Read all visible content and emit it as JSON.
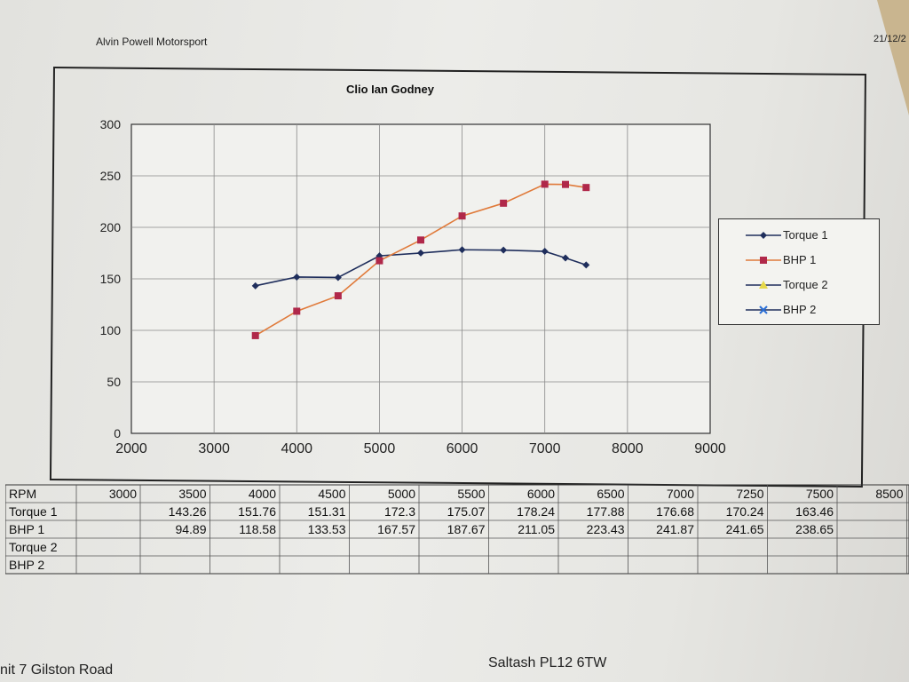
{
  "header": {
    "company": "Alvin Powell Motorsport",
    "date": "21/12/2"
  },
  "chart_data": {
    "type": "line",
    "title": "Clio Ian Godney",
    "xlim": [
      2000,
      9000
    ],
    "ylim": [
      0,
      300
    ],
    "xticks": [
      "2000",
      "3000",
      "4000",
      "5000",
      "6000",
      "7000",
      "8000",
      "9000"
    ],
    "yticks": [
      "0",
      "50",
      "100",
      "150",
      "200",
      "250",
      "300"
    ],
    "grid": true,
    "legend_position": "right",
    "series": [
      {
        "name": "Torque 1",
        "color": "#1f2e5c",
        "marker": "diamond",
        "x": [
          3500,
          4000,
          4500,
          5000,
          5500,
          6000,
          6500,
          7000,
          7250,
          7500
        ],
        "values": [
          143.26,
          151.76,
          151.31,
          172.3,
          175.07,
          178.24,
          177.88,
          176.68,
          170.24,
          163.46
        ]
      },
      {
        "name": "BHP 1",
        "color": "#b0284a",
        "line_color": "#e07a3a",
        "marker": "square",
        "x": [
          3500,
          4000,
          4500,
          5000,
          5500,
          6000,
          6500,
          7000,
          7250,
          7500
        ],
        "values": [
          94.89,
          118.58,
          133.53,
          167.57,
          187.67,
          211.05,
          223.43,
          241.87,
          241.65,
          238.65
        ]
      },
      {
        "name": "Torque 2",
        "color": "#1f2e5c",
        "marker": "triangle",
        "x": [],
        "values": []
      },
      {
        "name": "BHP 2",
        "color": "#1f2e5c",
        "marker": "x",
        "x": [],
        "values": []
      }
    ]
  },
  "table": {
    "row_labels": [
      "RPM",
      "Torque 1",
      "BHP 1",
      "Torque 2",
      "BHP 2"
    ],
    "rpm": [
      "3000",
      "3500",
      "4000",
      "4500",
      "5000",
      "5500",
      "6000",
      "6500",
      "7000",
      "7250",
      "7500",
      "8500"
    ],
    "torque1": [
      "",
      "143.26",
      "151.76",
      "151.31",
      "172.3",
      "175.07",
      "178.24",
      "177.88",
      "176.68",
      "170.24",
      "163.46",
      ""
    ],
    "bhp1": [
      "",
      "94.89",
      "118.58",
      "133.53",
      "167.57",
      "187.67",
      "211.05",
      "223.43",
      "241.87",
      "241.65",
      "238.65",
      ""
    ]
  },
  "footer": {
    "address_left": "nit 7 Gilston Road",
    "address_mid": "Saltash PL12 6TW"
  }
}
